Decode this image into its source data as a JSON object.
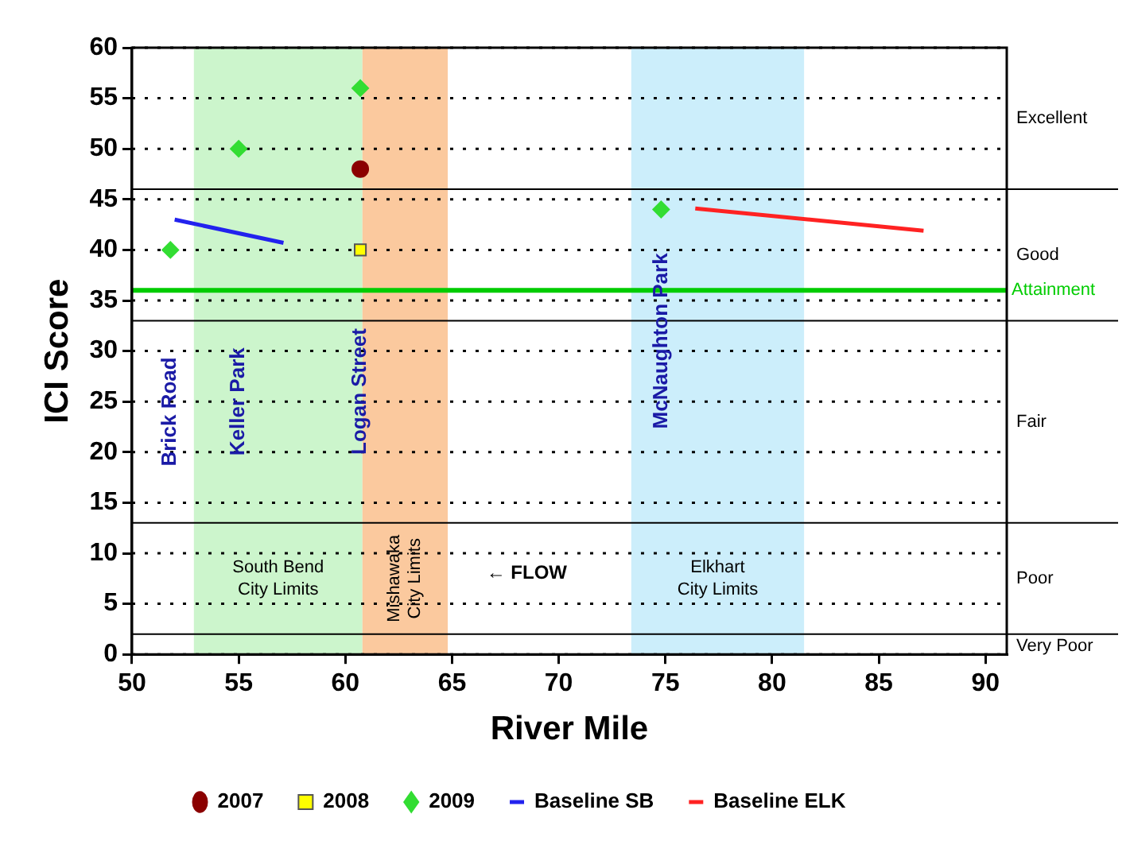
{
  "chart_data": {
    "type": "scatter",
    "xlabel": "River Mile",
    "ylabel": "ICI Score",
    "xlim": [
      50,
      91
    ],
    "xticks": [
      50,
      55,
      60,
      65,
      70,
      75,
      80,
      85,
      90
    ],
    "ylim": [
      0,
      60
    ],
    "yticks": [
      0,
      5,
      10,
      15,
      20,
      25,
      30,
      35,
      40,
      45,
      50,
      55,
      60
    ],
    "grid": "y",
    "legend": "bottom",
    "series": [
      {
        "name": "2007",
        "type": "scatter",
        "marker": "circle",
        "color": "#8b0000",
        "x": [
          60.7
        ],
        "values": [
          48
        ]
      },
      {
        "name": "2008",
        "type": "scatter",
        "marker": "square",
        "color": "#ffff00",
        "x": [
          60.7
        ],
        "values": [
          40
        ]
      },
      {
        "name": "2009",
        "type": "scatter",
        "marker": "diamond",
        "color": "#33dd33",
        "x": [
          51.8,
          55,
          60.7,
          74.8
        ],
        "values": [
          40,
          50,
          56,
          44
        ]
      },
      {
        "name": "Baseline SB",
        "type": "line",
        "marker": "none",
        "color": "#2222ee",
        "x": [
          52,
          57.1
        ],
        "values": [
          43,
          40.7
        ]
      },
      {
        "name": "Baseline ELK",
        "type": "line",
        "marker": "none",
        "color": "#ff2222",
        "x": [
          76.4,
          87.1
        ],
        "values": [
          44.1,
          41.9
        ]
      }
    ],
    "ref_lines": [
      {
        "axis": "y",
        "value": 36,
        "label": "Attainment",
        "color": "#00cc00"
      },
      {
        "axis": "y",
        "value": 46,
        "color": "#000000"
      },
      {
        "axis": "y",
        "value": 33,
        "color": "#000000"
      },
      {
        "axis": "y",
        "value": 13,
        "color": "#000000"
      },
      {
        "axis": "y",
        "value": 2,
        "color": "#000000"
      }
    ],
    "bands": [
      {
        "axis": "x",
        "from": 52.9,
        "to": 60.8,
        "label": "South Bend\nCity Limits",
        "color": "#ccf5cc"
      },
      {
        "axis": "x",
        "from": 60.8,
        "to": 64.8,
        "label": "Mishawaka\nCity Limits",
        "color": "#fbc99e"
      },
      {
        "axis": "x",
        "from": 73.4,
        "to": 81.5,
        "label": "Elkhart\nCity Limits",
        "color": "#cceefb"
      }
    ],
    "annotations": [
      "Brick Road",
      "Keller Park",
      "Logan Street",
      "McNaughton Park",
      "← FLOW",
      "Excellent",
      "Good",
      "Fair",
      "Poor",
      "Very Poor"
    ]
  }
}
